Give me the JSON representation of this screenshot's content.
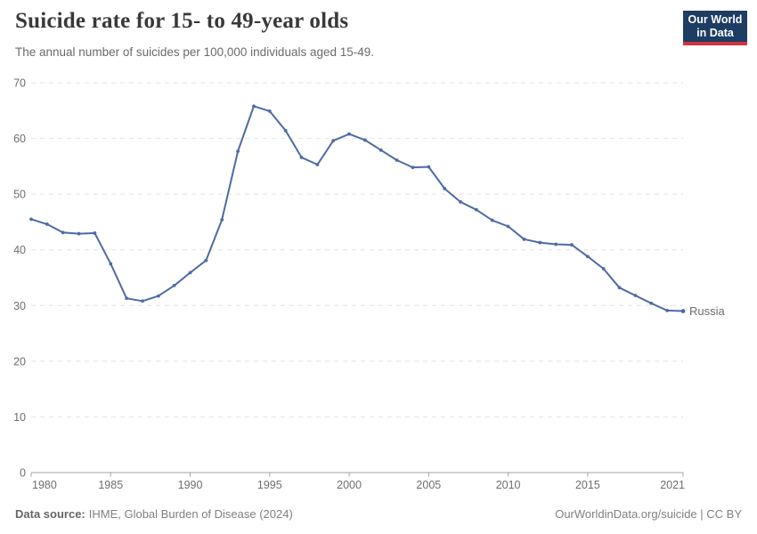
{
  "logo": {
    "line1": "Our World",
    "line2": "in Data"
  },
  "chart_data": {
    "type": "line",
    "title": "Suicide rate for 15- to 49-year olds",
    "subtitle": "The annual number of suicides per 100,000 individuals aged 15-49.",
    "x": [
      1980,
      1981,
      1982,
      1983,
      1984,
      1985,
      1986,
      1987,
      1988,
      1989,
      1990,
      1991,
      1992,
      1993,
      1994,
      1995,
      1996,
      1997,
      1998,
      1999,
      2000,
      2001,
      2002,
      2003,
      2004,
      2005,
      2006,
      2007,
      2008,
      2009,
      2010,
      2011,
      2012,
      2013,
      2014,
      2015,
      2016,
      2017,
      2018,
      2019,
      2020,
      2021
    ],
    "series": [
      {
        "name": "Russia",
        "values": [
          45.5,
          44.6,
          43.1,
          42.9,
          43.0,
          37.5,
          31.3,
          30.8,
          31.7,
          33.6,
          35.9,
          38.1,
          45.4,
          57.7,
          65.8,
          64.9,
          61.4,
          56.6,
          55.3,
          59.6,
          60.8,
          59.7,
          57.9,
          56.1,
          54.8,
          54.9,
          51.0,
          48.6,
          47.2,
          45.3,
          44.2,
          41.9,
          41.3,
          41.0,
          40.9,
          38.8,
          36.6,
          33.2,
          31.8,
          30.4,
          29.1,
          29.0
        ]
      }
    ],
    "x_ticks": [
      1980,
      1985,
      1990,
      1995,
      2000,
      2005,
      2010,
      2015,
      2021
    ],
    "y_ticks": [
      0,
      10,
      20,
      30,
      40,
      50,
      60,
      70
    ],
    "xlim": [
      1980,
      2021
    ],
    "ylim": [
      0,
      70
    ],
    "grid": "horizontal-dashed",
    "legend_position": "end-of-line",
    "colors": {
      "line": "#4d6ba5",
      "grid": "#e2e2e2",
      "axis": "#a3a3a3",
      "tick_text": "#6e6e6e"
    }
  },
  "footer": {
    "source_label": "Data source:",
    "source_text": "IHME, Global Burden of Disease (2024)",
    "credit": "OurWorldinData.org/suicide | CC BY"
  }
}
